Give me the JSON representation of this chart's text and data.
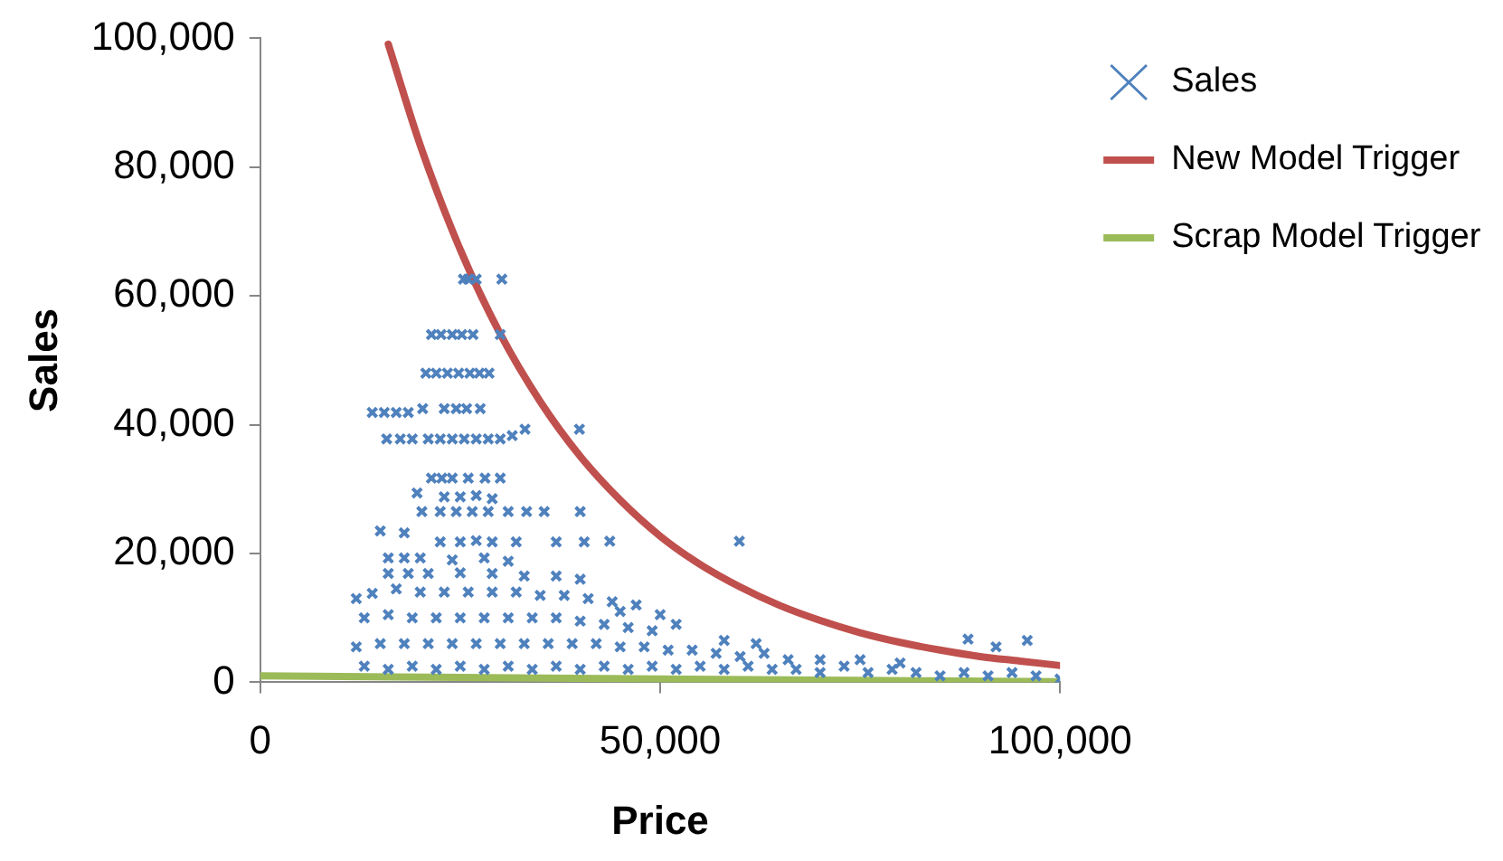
{
  "chart_data": {
    "type": "scatter",
    "xlabel": "Price",
    "ylabel": "Sales",
    "legend": "right",
    "grid": false,
    "xlim": [
      0,
      100000
    ],
    "xticks": [
      0,
      {
        "value": 50000,
        "label": "50,000"
      },
      {
        "value": 100000,
        "label": "100,000"
      }
    ],
    "ylim": [
      0,
      100000
    ],
    "yticks": [
      0,
      {
        "value": 20000,
        "label": "20,000"
      },
      {
        "value": 40000,
        "label": "40,000"
      },
      {
        "value": 60000,
        "label": "60,000"
      },
      {
        "value": 80000,
        "label": "80,000"
      },
      {
        "value": 100000,
        "label": "100,000"
      }
    ],
    "series": [
      {
        "name": "Sales",
        "marker": "cross",
        "color": "#4f81bd",
        "x": [
          25400,
          26000,
          27000,
          30200,
          21400,
          22600,
          24000,
          25200,
          26600,
          30000,
          20700,
          22000,
          23400,
          24800,
          26200,
          27400,
          28600,
          14000,
          15500,
          17000,
          18500,
          20300,
          23000,
          24500,
          25800,
          27500,
          15800,
          17500,
          19000,
          21000,
          22500,
          24000,
          25500,
          27000,
          28500,
          30000,
          31500,
          33100,
          39900,
          21400,
          22700,
          24000,
          26000,
          28100,
          30000,
          19600,
          23000,
          25000,
          27000,
          29000,
          20200,
          22500,
          24500,
          26500,
          28500,
          31000,
          33300,
          35500,
          40000,
          15000,
          18000,
          22500,
          25000,
          27000,
          29000,
          32000,
          37000,
          40500,
          43700,
          59900,
          16000,
          18000,
          20000,
          24000,
          28000,
          31000,
          16000,
          18500,
          21000,
          25000,
          29000,
          33000,
          37000,
          40000,
          12000,
          14000,
          17000,
          20000,
          23000,
          26000,
          29000,
          32000,
          35000,
          38000,
          41000,
          44000,
          47000,
          13000,
          16000,
          19000,
          22000,
          25000,
          28000,
          31000,
          34000,
          37000,
          40000,
          43000,
          46000,
          49000,
          52000,
          45000,
          50000,
          12000,
          15000,
          18000,
          21000,
          24000,
          27000,
          30000,
          33000,
          36000,
          39000,
          42000,
          45000,
          48000,
          51000,
          54000,
          57000,
          60000,
          63000,
          66000,
          13000,
          16000,
          19000,
          22000,
          25000,
          28000,
          31000,
          34000,
          37000,
          40000,
          43000,
          46000,
          49000,
          52000,
          55000,
          58000,
          61000,
          64000,
          67000,
          70000,
          73000,
          76000,
          79000,
          82000,
          85000,
          88000,
          91000,
          94000,
          97000,
          100000,
          70000,
          75000,
          80000,
          88500,
          92000,
          95900,
          58000,
          62000
        ],
        "values": [
          62600,
          62600,
          62600,
          62600,
          54000,
          54000,
          54000,
          54000,
          54000,
          54000,
          48000,
          48000,
          48000,
          48000,
          48000,
          48000,
          48000,
          41900,
          41900,
          41900,
          41900,
          42500,
          42500,
          42500,
          42500,
          42500,
          37800,
          37800,
          37800,
          37800,
          37800,
          37800,
          37800,
          37800,
          37800,
          37800,
          38300,
          39300,
          39300,
          31700,
          31700,
          31700,
          31700,
          31700,
          31700,
          29400,
          28800,
          28800,
          29000,
          28500,
          26500,
          26500,
          26500,
          26500,
          26500,
          26500,
          26500,
          26500,
          26500,
          23500,
          23200,
          21800,
          21800,
          22000,
          21800,
          21800,
          21800,
          21800,
          21900,
          21900,
          19300,
          19300,
          19300,
          19000,
          19300,
          18800,
          16900,
          16900,
          16900,
          17000,
          16900,
          16500,
          16500,
          16000,
          13000,
          13800,
          14500,
          14000,
          14000,
          14000,
          14000,
          14000,
          13500,
          13500,
          13000,
          12500,
          12000,
          10000,
          10500,
          10000,
          10000,
          10000,
          10000,
          10000,
          10000,
          10000,
          9500,
          9000,
          8500,
          8000,
          9000,
          11000,
          10500,
          5500,
          6000,
          6000,
          6000,
          6000,
          6000,
          6000,
          6000,
          6000,
          6000,
          6000,
          5500,
          5500,
          5000,
          5000,
          4500,
          4000,
          4500,
          3500,
          2500,
          2000,
          2500,
          2000,
          2500,
          2000,
          2500,
          2000,
          2500,
          2000,
          2500,
          2000,
          2500,
          2000,
          2500,
          2000,
          2500,
          2000,
          2000,
          1500,
          2500,
          1500,
          2000,
          1500,
          1000,
          1500,
          1000,
          1500,
          1000,
          500,
          3500,
          3500,
          3000,
          6700,
          5500,
          6500,
          6500,
          6000
        ]
      },
      {
        "name": "New Model Trigger",
        "type": "line",
        "marker": "none",
        "line_style": "solid",
        "color": "#c0504d",
        "x": [
          16000,
          20000,
          25000,
          30000,
          35000,
          40000,
          45000,
          50000,
          55000,
          60000,
          65000,
          70000,
          75000,
          80000,
          85000,
          90000,
          95000,
          100000
        ],
        "values": [
          99100,
          83400,
          67200,
          54100,
          43600,
          35100,
          28300,
          22700,
          18300,
          14800,
          11900,
          9600,
          7700,
          6200,
          5000,
          4000,
          3300,
          2600
        ]
      },
      {
        "name": "Scrap Model Trigger",
        "type": "line",
        "marker": "none",
        "line_style": "solid",
        "color": "#9bbb59",
        "x": [
          0,
          50000,
          100000
        ],
        "values": [
          1000,
          500,
          100
        ]
      }
    ]
  }
}
